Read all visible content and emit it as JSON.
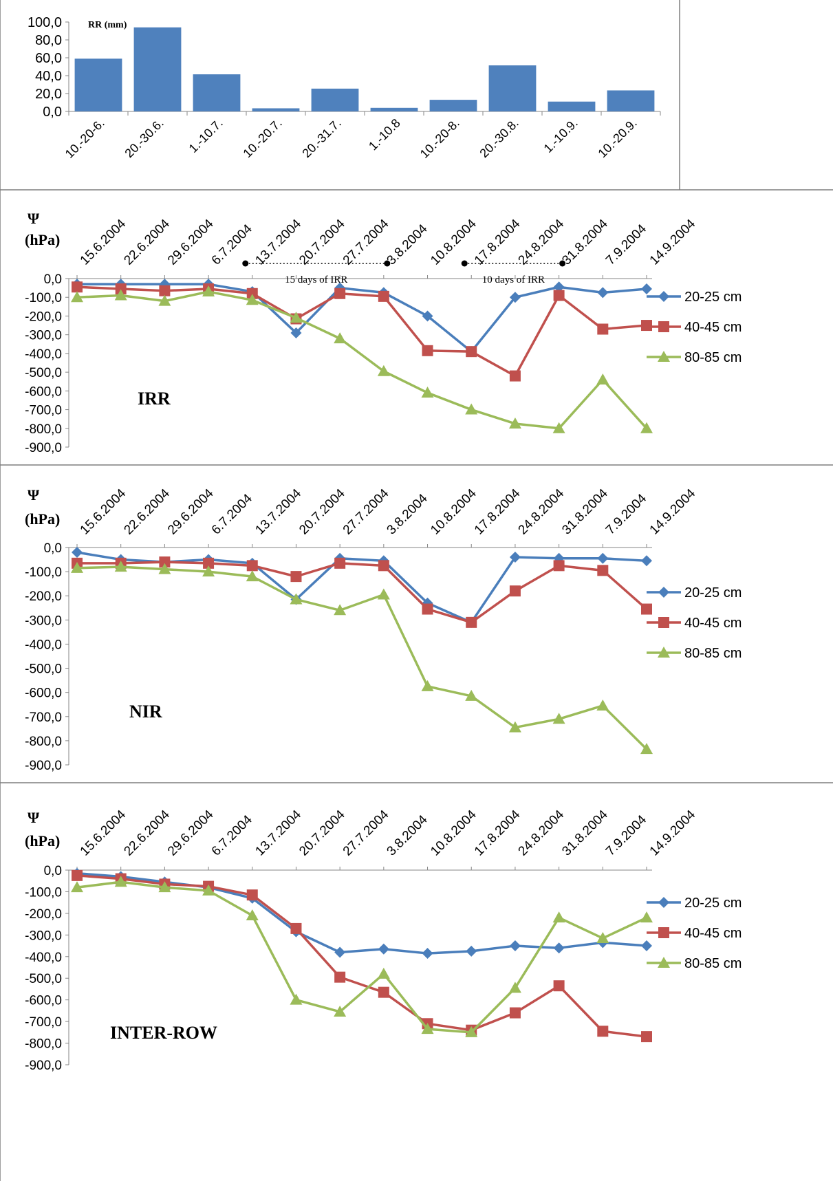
{
  "colors": {
    "bar": "#4F81BD",
    "s20": "#4A7EBB",
    "s40": "#C0504D",
    "s80": "#9BBB59",
    "axis": "#868686",
    "frame": "#7f7f7f"
  },
  "chart_data": [
    {
      "type": "bar",
      "ylabel": "RR (mm)",
      "categories": [
        "10.-20-6.",
        "20.-30.6.",
        "1.-10.7.",
        "10.-20.7.",
        "20.-31.7.",
        "1.-10.8",
        "10.-20-8.",
        "20.-30.8.",
        "1.-10.9.",
        "10.-20.9."
      ],
      "values": [
        59.0,
        94.0,
        41.5,
        3.5,
        25.5,
        4.0,
        13.0,
        51.5,
        11.0,
        23.5
      ],
      "ylim": [
        0,
        100
      ],
      "yticks": [
        "100,0",
        "80,0",
        "60,0",
        "40,0",
        "20,0",
        "0,0"
      ],
      "grid": false
    },
    {
      "type": "line",
      "panel_label": "IRR",
      "ylabel": "Ψ",
      "ylabel_unit": "(hPa)",
      "x": [
        "15.6.2004",
        "22.6.2004",
        "29.6.2004",
        "6.7.2004",
        "13.7.2004",
        "20.7.2004",
        "27.7.2004",
        "3.8.2004",
        "10.8.2004",
        "17.8.2004",
        "24.8.2004",
        "31.8.2004",
        "7.9.2004",
        "14.9.2004"
      ],
      "yticks": [
        "0,0",
        "-100,0",
        "-200,0",
        "-300,0",
        "-400,0",
        "-500,0",
        "-600,0",
        "-700,0",
        "-800,0",
        "-900,0"
      ],
      "ylim": [
        -900,
        0
      ],
      "legend_position": "right",
      "series": [
        {
          "name": "20-25 cm",
          "marker": "diamond",
          "values": [
            -30,
            -30,
            -30,
            -30,
            -70,
            -290,
            -50,
            -75,
            -200,
            -390,
            -100,
            -45,
            -75,
            -55
          ]
        },
        {
          "name": "40-45 cm",
          "marker": "square",
          "values": [
            -45,
            -55,
            -65,
            -55,
            -80,
            -215,
            -80,
            -95,
            -385,
            -390,
            -520,
            -90,
            -270,
            -250
          ]
        },
        {
          "name": "80-85 cm",
          "marker": "triangle",
          "values": [
            -100,
            -90,
            -120,
            -70,
            -115,
            -210,
            -320,
            -495,
            -610,
            -700,
            -775,
            -800,
            -540,
            -800
          ]
        }
      ],
      "annotations": [
        {
          "text": "15 days of IRR",
          "from": "13.7.2004",
          "to": "3.8.2004"
        },
        {
          "text": "10 days of IRR",
          "from": "17.8.2004",
          "to": "31.8.2004"
        }
      ]
    },
    {
      "type": "line",
      "panel_label": "NIR",
      "ylabel": "Ψ",
      "ylabel_unit": "(hPa)",
      "x": [
        "15.6.2004",
        "22.6.2004",
        "29.6.2004",
        "6.7.2004",
        "13.7.2004",
        "20.7.2004",
        "27.7.2004",
        "3.8.2004",
        "10.8.2004",
        "17.8.2004",
        "24.8.2004",
        "31.8.2004",
        "7.9.2004",
        "14.9.2004"
      ],
      "yticks": [
        "0,0",
        "-100,0",
        "-200,0",
        "-300,0",
        "-400,0",
        "-500,0",
        "-600,0",
        "-700,0",
        "-800,0",
        "-900,0"
      ],
      "ylim": [
        -900,
        0
      ],
      "legend_position": "right",
      "series": [
        {
          "name": "20-25 cm",
          "marker": "diamond",
          "values": [
            -20,
            -50,
            -60,
            -50,
            -65,
            -215,
            -45,
            -55,
            -230,
            -310,
            -40,
            -45,
            -45,
            -55
          ]
        },
        {
          "name": "40-45 cm",
          "marker": "square",
          "values": [
            -65,
            -65,
            -60,
            -65,
            -75,
            -120,
            -65,
            -75,
            -255,
            -310,
            -180,
            -75,
            -95,
            -255
          ]
        },
        {
          "name": "80-85 cm",
          "marker": "triangle",
          "values": [
            -85,
            -80,
            -90,
            -100,
            -120,
            -215,
            -260,
            -195,
            -575,
            -615,
            -745,
            -710,
            -655,
            -835
          ]
        }
      ]
    },
    {
      "type": "line",
      "panel_label": "INTER-ROW",
      "ylabel": "Ψ",
      "ylabel_unit": "(hPa)",
      "x": [
        "15.6.2004",
        "22.6.2004",
        "29.6.2004",
        "6.7.2004",
        "13.7.2004",
        "20.7.2004",
        "27.7.2004",
        "3.8.2004",
        "10.8.2004",
        "17.8.2004",
        "24.8.2004",
        "31.8.2004",
        "7.9.2004",
        "14.9.2004"
      ],
      "yticks": [
        "0,0",
        "-100,0",
        "-200,0",
        "-300,0",
        "-400,0",
        "-500,0",
        "-600,0",
        "-700,0",
        "-800,0",
        "-900,0"
      ],
      "ylim": [
        -900,
        0
      ],
      "legend_position": "right",
      "series": [
        {
          "name": "20-25 cm",
          "marker": "diamond",
          "values": [
            -15,
            -30,
            -55,
            -80,
            -130,
            -285,
            -380,
            -365,
            -385,
            -375,
            -350,
            -360,
            -335,
            -350
          ]
        },
        {
          "name": "40-45 cm",
          "marker": "square",
          "values": [
            -25,
            -40,
            -65,
            -75,
            -115,
            -270,
            -495,
            -565,
            -710,
            -740,
            -660,
            -535,
            -745,
            -770
          ]
        },
        {
          "name": "80-85 cm",
          "marker": "triangle",
          "values": [
            -80,
            -55,
            -80,
            -95,
            -210,
            -600,
            -655,
            -480,
            -735,
            -750,
            -545,
            -220,
            -315,
            -220
          ]
        }
      ]
    }
  ]
}
